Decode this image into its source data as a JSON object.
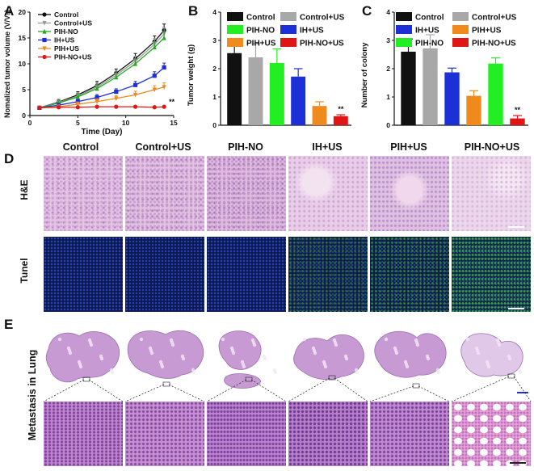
{
  "panels": {
    "A": "A",
    "B": "B",
    "C": "C",
    "D": "D",
    "E": "E"
  },
  "colors": {
    "control": "#111111",
    "control_us": "#9a9a9a",
    "pih_no": "#22dd22",
    "ih_us": "#1d2fd6",
    "pih_us": "#f08a1c",
    "pih_no_us": "#e01515",
    "he": "#d9b6d9",
    "tunel": "#0a1440"
  },
  "chart_data": [
    {
      "type": "line",
      "xlabel": "Time (Day)",
      "ylabel": "Nomalized tumor volume (V/V₀)",
      "xlim": [
        0,
        15
      ],
      "ylim": [
        0,
        20
      ],
      "xticks": [
        "0",
        "5",
        "10",
        "15"
      ],
      "yticks": [
        "0",
        "5",
        "10",
        "15",
        "20"
      ],
      "x": [
        1,
        3,
        5,
        7,
        9,
        11,
        13,
        14
      ],
      "annotation": "**",
      "series": [
        {
          "name": "Control",
          "color": "#111111",
          "marker": "circle",
          "values": [
            1.5,
            2.6,
            4.0,
            5.8,
            8.2,
            11.0,
            14.3,
            16.5
          ]
        },
        {
          "name": "Control+US",
          "color": "#9a9a9a",
          "marker": "tri-down",
          "values": [
            1.5,
            2.5,
            3.8,
            5.5,
            7.8,
            10.5,
            13.8,
            15.8
          ]
        },
        {
          "name": "PIH-NO",
          "color": "#22aa22",
          "marker": "tri-up",
          "values": [
            1.5,
            2.4,
            3.6,
            5.2,
            7.4,
            10.0,
            13.2,
            15.0
          ]
        },
        {
          "name": "IH+US",
          "color": "#1d2fd6",
          "marker": "square",
          "values": [
            1.5,
            2.0,
            2.7,
            3.5,
            4.6,
            5.9,
            7.7,
            9.3
          ]
        },
        {
          "name": "PIH+US",
          "color": "#f08a1c",
          "marker": "tri-down",
          "values": [
            1.5,
            1.7,
            2.2,
            2.7,
            3.3,
            4.0,
            5.0,
            5.5
          ]
        },
        {
          "name": "PIH-NO+US",
          "color": "#e01515",
          "marker": "circle",
          "values": [
            1.5,
            1.6,
            1.6,
            1.7,
            1.7,
            1.7,
            1.6,
            1.7
          ]
        }
      ]
    },
    {
      "type": "bar",
      "ylabel": "Tumor weight (g)",
      "ylim": [
        0,
        4
      ],
      "yticks": [
        "0",
        "1",
        "2",
        "3",
        "4"
      ],
      "categories": [
        "Control",
        "Control+US",
        "PIH-NO",
        "IH+US",
        "PIH+US",
        "PIH-NO+US"
      ],
      "values": [
        2.55,
        2.4,
        2.2,
        1.72,
        0.68,
        0.32
      ],
      "errors": [
        0.28,
        0.48,
        0.5,
        0.28,
        0.15,
        0.05
      ],
      "bar_colors": [
        "#111111",
        "#a8a8a8",
        "#22ee22",
        "#1d2fd6",
        "#f08a1c",
        "#e01515"
      ],
      "annotation": "**"
    },
    {
      "type": "bar",
      "ylabel": "Number of colony",
      "ylim": [
        0,
        4
      ],
      "yticks": [
        "0",
        "1",
        "2",
        "3",
        "4"
      ],
      "categories": [
        "Control",
        "Control+US",
        "IH+US",
        "PIH+US",
        "PIH-NO",
        "PIH-NO+US"
      ],
      "values": [
        2.6,
        2.72,
        1.87,
        1.04,
        2.18,
        0.24
      ],
      "errors": [
        0.45,
        0.48,
        0.15,
        0.18,
        0.2,
        0.1
      ],
      "bar_colors": [
        "#111111",
        "#a8a8a8",
        "#1d2fd6",
        "#f08a1c",
        "#22ee22",
        "#e01515"
      ],
      "annotation": "**"
    }
  ],
  "panelD": {
    "columns": [
      "Control",
      "Control+US",
      "PIH-NO",
      "IH+US",
      "PIH+US",
      "PIH-NO+US"
    ],
    "rows": [
      "H&E",
      "Tunel"
    ]
  },
  "panelE": {
    "row_label": "Metastasis in Lung"
  }
}
